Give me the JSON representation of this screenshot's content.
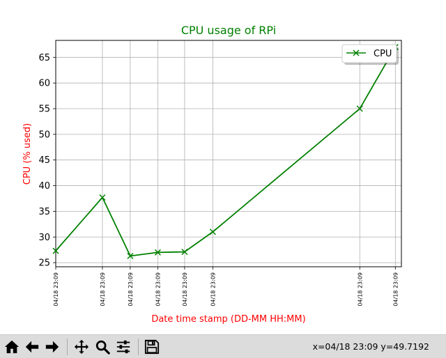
{
  "toolbar": {
    "buttons": [
      {
        "name": "home-button",
        "icon": "home-icon"
      },
      {
        "name": "back-button",
        "icon": "back-arrow-icon"
      },
      {
        "name": "forward-button",
        "icon": "forward-arrow-icon"
      },
      {
        "name": "pan-button",
        "icon": "move-icon"
      },
      {
        "name": "zoom-button",
        "icon": "magnifier-icon"
      },
      {
        "name": "configure-subplots-button",
        "icon": "sliders-icon"
      },
      {
        "name": "save-button",
        "icon": "floppy-disk-icon"
      }
    ],
    "coordinates": "x=04/18 23:09 y=49.7192"
  },
  "chart_data": {
    "type": "line",
    "title": "CPU usage of RPi",
    "xlabel": "Date time stamp (DD-MM HH:MM)",
    "ylabel": "CPU (% used)",
    "title_color": "#008000",
    "label_color": "#ff0000",
    "line_color": "#008000",
    "grid": true,
    "legend": "top-right",
    "marker": "x",
    "ylim": [
      24.2,
      68.3
    ],
    "yticks": [
      25,
      30,
      35,
      40,
      45,
      50,
      55,
      60,
      65
    ],
    "xlim_seconds": [
      0,
      51.5
    ],
    "series": [
      {
        "name": "CPU",
        "x_seconds": [
          0,
          6.95,
          11.1,
          15.2,
          19.2,
          23.4,
          45.3,
          50.6
        ],
        "x_labels": [
          "04/18 23:09",
          "04/18 23:09",
          "04/18 23:09",
          "04/18 23:09",
          "04/18 23:09",
          "04/18 23:09",
          "04/18 23:09",
          "04/18 23:09"
        ],
        "values": [
          27.3,
          37.7,
          26.3,
          27.0,
          27.1,
          31.0,
          55.0,
          67.0
        ]
      }
    ]
  }
}
